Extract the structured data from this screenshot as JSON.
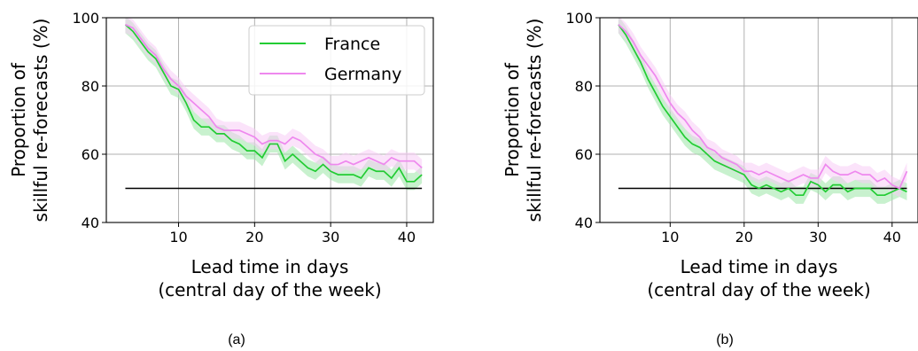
{
  "chart_data": [
    {
      "type": "line",
      "caption": "(a)",
      "xlabel_line1": "Lead time in days",
      "xlabel_line2": "(central day of the week)",
      "ylabel_line1": "Proportion of",
      "ylabel_line2": "skillful re-forecasts (%)",
      "xlim": [
        0.5,
        43.5
      ],
      "ylim": [
        40,
        100
      ],
      "xticks": [
        10,
        20,
        30,
        40
      ],
      "yticks": [
        40,
        60,
        80,
        100
      ],
      "grid": true,
      "legend": "top-right",
      "reference_line": {
        "y": 50,
        "x": [
          3,
          42
        ],
        "color": "#000000"
      },
      "series": [
        {
          "name": "France",
          "color": "#22cc33",
          "band_color": "#9be6a6",
          "x": [
            3,
            4,
            5,
            6,
            7,
            8,
            9,
            10,
            11,
            12,
            13,
            14,
            15,
            16,
            17,
            18,
            19,
            20,
            21,
            22,
            23,
            24,
            25,
            26,
            27,
            28,
            29,
            30,
            31,
            32,
            33,
            34,
            35,
            36,
            37,
            38,
            39,
            40,
            41,
            42
          ],
          "values": [
            98,
            96,
            93,
            90,
            88,
            84,
            80,
            79,
            75,
            70,
            68,
            68,
            66,
            66,
            64,
            63,
            61,
            61,
            59,
            63,
            63,
            58,
            60,
            58,
            56,
            55,
            57,
            55,
            54,
            54,
            54,
            53,
            56,
            55,
            55,
            53,
            56,
            52,
            52,
            54
          ],
          "band": 2.5
        },
        {
          "name": "Germany",
          "color": "#ee88ee",
          "band_color": "#f8ccf6",
          "x": [
            3,
            4,
            5,
            6,
            7,
            8,
            9,
            10,
            11,
            12,
            13,
            14,
            15,
            16,
            17,
            18,
            19,
            20,
            21,
            22,
            23,
            24,
            25,
            26,
            27,
            28,
            29,
            30,
            31,
            32,
            33,
            34,
            35,
            36,
            37,
            38,
            39,
            40,
            41,
            42
          ],
          "values": [
            98,
            97,
            94,
            91,
            89,
            85,
            82,
            80,
            77,
            75,
            73,
            71,
            68,
            67,
            67,
            67,
            66,
            65,
            63,
            64,
            64,
            63,
            65,
            64,
            62,
            60,
            59,
            57,
            57,
            58,
            57,
            58,
            59,
            58,
            57,
            59,
            58,
            58,
            58,
            56
          ],
          "band": 2.5
        }
      ]
    },
    {
      "type": "line",
      "caption": "(b)",
      "xlabel_line1": "Lead time in days",
      "xlabel_line2": "(central day of the week)",
      "ylabel_line1": "Proportion of",
      "ylabel_line2": "skillful re-forecasts (%)",
      "xlim": [
        0.5,
        43.5
      ],
      "ylim": [
        40,
        100
      ],
      "xticks": [
        10,
        20,
        30,
        40
      ],
      "yticks": [
        40,
        60,
        80,
        100
      ],
      "grid": true,
      "reference_line": {
        "y": 50,
        "x": [
          3,
          42
        ],
        "color": "#000000"
      },
      "series": [
        {
          "name": "France",
          "color": "#22cc33",
          "band_color": "#9be6a6",
          "x": [
            3,
            4,
            5,
            6,
            7,
            8,
            9,
            10,
            11,
            12,
            13,
            14,
            15,
            16,
            17,
            18,
            19,
            20,
            21,
            22,
            23,
            24,
            25,
            26,
            27,
            28,
            29,
            30,
            31,
            32,
            33,
            34,
            35,
            36,
            37,
            38,
            39,
            40,
            41,
            42
          ],
          "values": [
            98,
            95,
            91,
            87,
            82,
            78,
            74,
            71,
            68,
            65,
            63,
            62,
            60,
            58,
            57,
            56,
            55,
            54,
            51,
            50,
            51,
            50,
            49,
            50,
            48,
            48,
            52,
            51,
            49,
            51,
            51,
            49,
            50,
            50,
            50,
            48,
            48,
            49,
            50,
            49
          ],
          "band": 2.5
        },
        {
          "name": "Germany",
          "color": "#ee88ee",
          "band_color": "#f8ccf6",
          "x": [
            3,
            4,
            5,
            6,
            7,
            8,
            9,
            10,
            11,
            12,
            13,
            14,
            15,
            16,
            17,
            18,
            19,
            20,
            21,
            22,
            23,
            24,
            25,
            26,
            27,
            28,
            29,
            30,
            31,
            32,
            33,
            34,
            35,
            36,
            37,
            38,
            39,
            40,
            41,
            42
          ],
          "values": [
            98,
            96,
            93,
            89,
            86,
            83,
            79,
            75,
            72,
            70,
            67,
            65,
            62,
            61,
            59,
            58,
            57,
            55,
            55,
            54,
            55,
            54,
            53,
            52,
            53,
            54,
            53,
            53,
            57,
            55,
            54,
            54,
            55,
            54,
            54,
            52,
            53,
            51,
            50,
            55
          ],
          "band": 2.5
        }
      ]
    }
  ]
}
